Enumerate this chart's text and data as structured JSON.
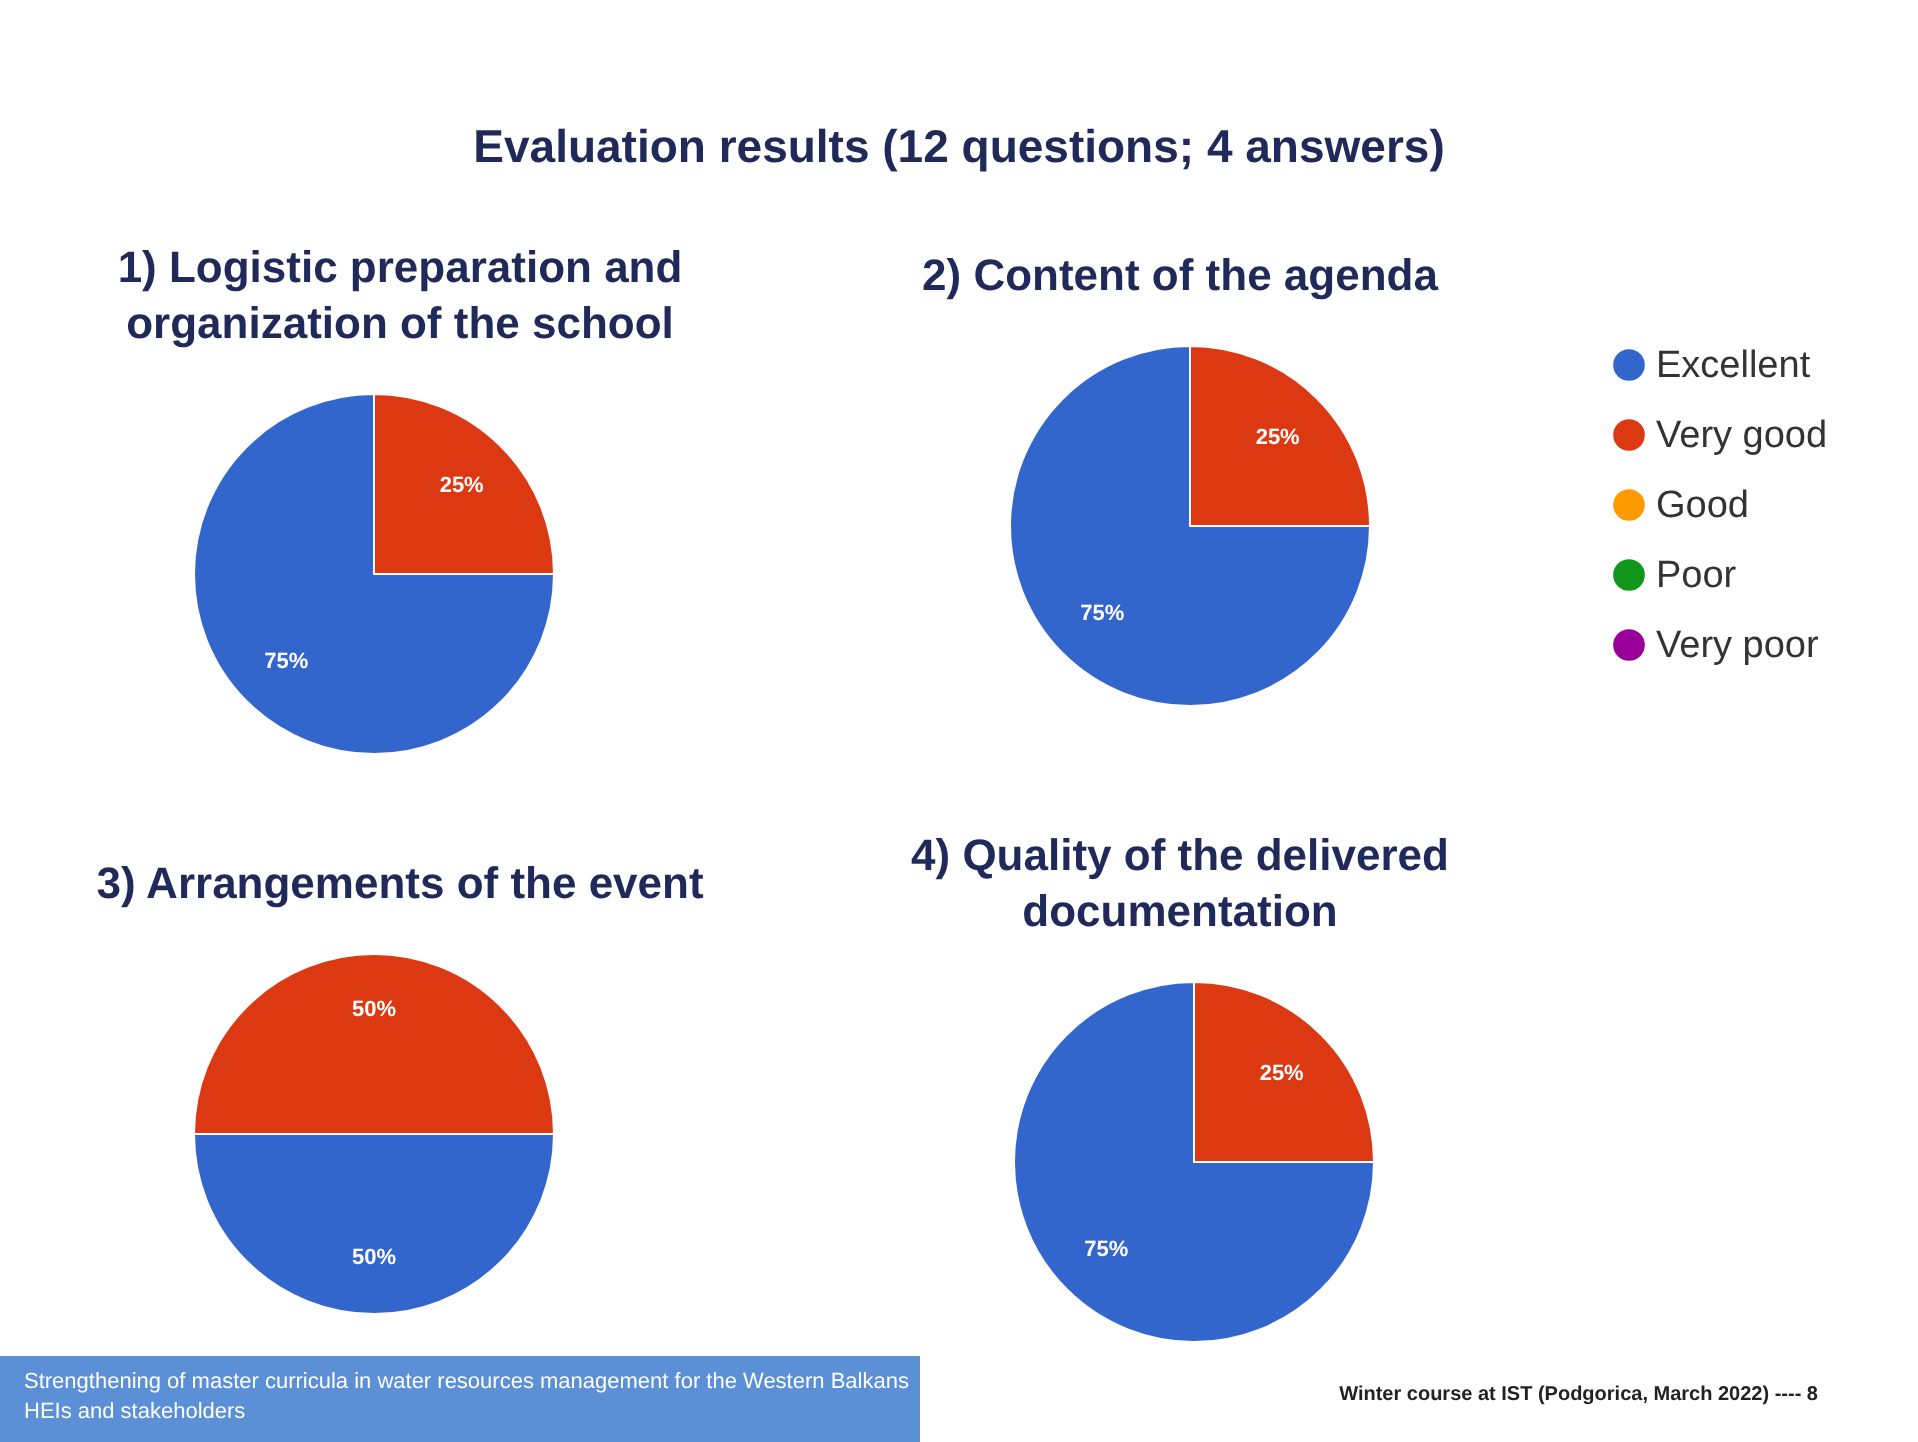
{
  "chart_data": [
    {
      "type": "pie",
      "title": "1) Logistic preparation and organization of the school",
      "categories": [
        null,
        null,
        null,
        null,
        null
      ],
      "values": [
        75,
        25,
        0,
        0,
        0
      ],
      "value_labels": [
        "75%",
        "25%",
        null,
        null,
        null
      ],
      "colors": [
        "#3366cc",
        "#dc3912",
        "#ff9900",
        "#109618",
        "#990099"
      ],
      "legend": false,
      "annotations": [
        "Evaluation results (12 questions; 4 answers)",
        "Strengthening of master curricula in water resources  management for the Western Balkans HEIs and stakeholders",
        "Winter course at IST (Podgorica, March 2022) ---- 8"
      ]
    },
    {
      "type": "pie",
      "title": "2) Content of the agenda",
      "categories": [
        "Excellent",
        "Very good",
        "Good",
        "Poor",
        "Very poor"
      ],
      "values": [
        75,
        25,
        0,
        0,
        0
      ],
      "value_labels": [
        "75%",
        "25%",
        null,
        null,
        null
      ],
      "colors": [
        "#3366cc",
        "#dc3912",
        "#ff9900",
        "#109618",
        "#990099"
      ],
      "legend": "right"
    },
    {
      "type": "pie",
      "title": "3) Arrangements of the event",
      "categories": [
        null,
        null,
        null,
        null,
        null
      ],
      "values": [
        50,
        50,
        0,
        0,
        0
      ],
      "value_labels": [
        "50%",
        "50%",
        null,
        null,
        null
      ],
      "colors": [
        "#3366cc",
        "#dc3912",
        "#ff9900",
        "#109618",
        "#990099"
      ],
      "legend": false
    },
    {
      "type": "pie",
      "title": "4) Quality of the delivered documentation",
      "categories": [
        null,
        null,
        null,
        null,
        null
      ],
      "values": [
        75,
        25,
        0,
        0,
        0
      ],
      "value_labels": [
        "75%",
        "25%",
        null,
        null,
        null
      ],
      "colors": [
        "#3366cc",
        "#dc3912",
        "#ff9900",
        "#109618",
        "#990099"
      ],
      "legend": false
    }
  ]
}
